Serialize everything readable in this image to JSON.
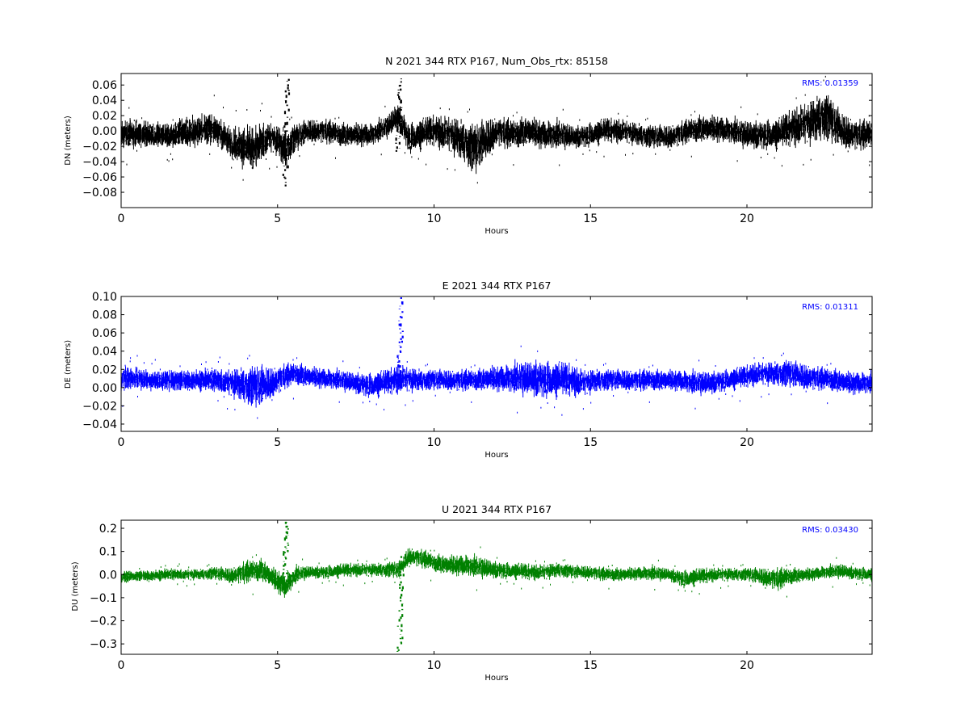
{
  "chart_data": [
    {
      "type": "scatter",
      "title": "N 2021 344 RTX  P167, Num_Obs_rtx: 85158",
      "xlabel": "Hours",
      "ylabel": "DN (meters)",
      "xlim": [
        0,
        24
      ],
      "ylim": [
        -0.1,
        0.075
      ],
      "xticks": [
        "0",
        "5",
        "10",
        "15",
        "20"
      ],
      "yticks": [
        "0.06",
        "0.04",
        "0.02",
        "0.00",
        "−0.02",
        "−0.04",
        "−0.06",
        "−0.08"
      ],
      "color": "#000000",
      "rms_text": "RMS:  0.01359",
      "rms_color": "#0000ff",
      "grid": false,
      "series": [
        {
          "x": [
            0,
            0.5,
            1,
            1.5,
            2,
            2.5,
            2.9,
            3.2,
            3.5,
            3.8,
            4.1,
            4.4,
            4.7,
            4.95,
            5.25,
            5.5,
            6,
            6.5,
            7,
            7.5,
            8,
            8.5,
            8.85,
            9.2,
            9.6,
            10,
            10.5,
            11,
            11.3,
            11.6,
            12,
            12.5,
            13,
            13.5,
            14,
            14.5,
            15,
            15.5,
            16,
            16.5,
            17,
            17.5,
            18,
            18.5,
            19,
            19.5,
            20,
            20.5,
            21,
            21.5,
            22,
            22.5,
            23,
            23.5,
            24
          ],
          "center": [
            -0.005,
            -0.003,
            -0.005,
            -0.008,
            -0.002,
            0.0,
            0.005,
            -0.005,
            -0.015,
            -0.02,
            -0.025,
            -0.02,
            -0.008,
            -0.012,
            -0.025,
            -0.012,
            0.0,
            0.0,
            -0.005,
            -0.005,
            -0.005,
            0.005,
            0.02,
            -0.01,
            -0.005,
            0.0,
            -0.005,
            -0.015,
            -0.025,
            -0.015,
            0.0,
            -0.005,
            0.0,
            -0.005,
            -0.005,
            -0.008,
            -0.005,
            0.0,
            0.0,
            -0.005,
            -0.008,
            -0.008,
            -0.002,
            0.003,
            0.003,
            0.0,
            -0.005,
            -0.005,
            -0.005,
            0.005,
            0.01,
            0.02,
            0.0,
            -0.005,
            -0.005
          ],
          "spread": [
            0.02,
            0.018,
            0.018,
            0.018,
            0.02,
            0.022,
            0.022,
            0.02,
            0.02,
            0.025,
            0.03,
            0.03,
            0.022,
            0.02,
            0.03,
            0.02,
            0.016,
            0.016,
            0.016,
            0.016,
            0.016,
            0.016,
            0.02,
            0.02,
            0.02,
            0.02,
            0.025,
            0.03,
            0.035,
            0.03,
            0.02,
            0.02,
            0.02,
            0.02,
            0.02,
            0.016,
            0.016,
            0.016,
            0.016,
            0.016,
            0.016,
            0.016,
            0.016,
            0.018,
            0.018,
            0.018,
            0.02,
            0.02,
            0.02,
            0.025,
            0.03,
            0.035,
            0.025,
            0.02,
            0.02
          ]
        }
      ],
      "annotations": [
        {
          "type": "spike",
          "x": 5.25,
          "y_from": -0.07,
          "y_to": 0.068
        },
        {
          "type": "spike",
          "x": 8.85,
          "y_from": -0.025,
          "y_to": 0.07
        }
      ]
    },
    {
      "type": "scatter",
      "title": "E 2021 344 RTX  P167",
      "xlabel": "Hours",
      "ylabel": "DE (meters)",
      "xlim": [
        0,
        24
      ],
      "ylim": [
        -0.048,
        0.1
      ],
      "xticks": [
        "0",
        "5",
        "10",
        "15",
        "20"
      ],
      "yticks": [
        "0.10",
        "0.08",
        "0.06",
        "0.04",
        "0.02",
        "0.00",
        "−0.02",
        "−0.04"
      ],
      "color": "#0000ff",
      "rms_text": "RMS:  0.01311",
      "rms_color": "#0000ff",
      "grid": false,
      "series": [
        {
          "x": [
            0,
            0.5,
            1,
            1.5,
            2,
            2.5,
            3,
            3.5,
            4,
            4.4,
            4.8,
            5.2,
            5.6,
            6,
            6.5,
            7,
            7.5,
            8,
            8.5,
            8.9,
            9.3,
            9.8,
            10.3,
            10.8,
            11.3,
            11.8,
            12.3,
            12.8,
            13.3,
            13.8,
            14.3,
            14.8,
            15.3,
            15.8,
            16.3,
            16.8,
            17.3,
            17.8,
            18.3,
            18.8,
            19.3,
            19.8,
            20.3,
            20.8,
            21.3,
            21.8,
            22.3,
            22.8,
            23.3,
            24
          ],
          "center": [
            0.01,
            0.01,
            0.008,
            0.008,
            0.008,
            0.008,
            0.008,
            0.005,
            0.002,
            0.0,
            0.005,
            0.012,
            0.015,
            0.012,
            0.01,
            0.008,
            0.005,
            0.002,
            0.005,
            0.01,
            0.008,
            0.008,
            0.008,
            0.008,
            0.008,
            0.01,
            0.01,
            0.01,
            0.01,
            0.008,
            0.008,
            0.005,
            0.008,
            0.008,
            0.008,
            0.008,
            0.008,
            0.008,
            0.005,
            0.005,
            0.008,
            0.01,
            0.015,
            0.015,
            0.015,
            0.012,
            0.01,
            0.008,
            0.005,
            0.005
          ],
          "spread": [
            0.015,
            0.013,
            0.012,
            0.012,
            0.012,
            0.012,
            0.013,
            0.016,
            0.022,
            0.025,
            0.018,
            0.014,
            0.013,
            0.012,
            0.012,
            0.012,
            0.013,
            0.014,
            0.014,
            0.016,
            0.014,
            0.012,
            0.012,
            0.012,
            0.012,
            0.014,
            0.016,
            0.02,
            0.022,
            0.02,
            0.018,
            0.015,
            0.013,
            0.012,
            0.012,
            0.012,
            0.012,
            0.012,
            0.014,
            0.014,
            0.012,
            0.012,
            0.013,
            0.014,
            0.016,
            0.015,
            0.013,
            0.013,
            0.013,
            0.013
          ]
        }
      ],
      "annotations": [
        {
          "type": "spike",
          "x": 8.88,
          "y_from": -0.005,
          "y_to": 0.1
        }
      ]
    },
    {
      "type": "scatter",
      "title": "U 2021 344 RTX  P167",
      "xlabel": "Hours",
      "ylabel": "DU (meters)",
      "xlim": [
        0,
        24
      ],
      "ylim": [
        -0.345,
        0.235
      ],
      "xticks": [
        "0",
        "5",
        "10",
        "15",
        "20"
      ],
      "yticks": [
        "0.2",
        "0.1",
        "0.0",
        "−0.1",
        "−0.2",
        "−0.3"
      ],
      "color": "#008000",
      "rms_text": "RMS:  0.03430",
      "rms_color": "#0000ff",
      "grid": false,
      "series": [
        {
          "x": [
            0,
            0.5,
            1,
            1.5,
            2,
            2.5,
            3,
            3.5,
            4,
            4.5,
            4.9,
            5.25,
            5.6,
            6,
            6.5,
            7,
            7.5,
            8,
            8.5,
            8.9,
            9.2,
            9.6,
            10,
            10.5,
            11,
            11.5,
            12,
            12.5,
            13,
            13.5,
            14,
            14.5,
            15,
            15.5,
            16,
            16.5,
            17,
            17.5,
            18,
            18.5,
            19,
            19.5,
            20,
            20.5,
            21,
            21.5,
            22,
            22.5,
            23,
            23.5,
            24
          ],
          "center": [
            -0.01,
            -0.005,
            -0.005,
            0.0,
            0.0,
            0.0,
            0.005,
            -0.005,
            0.01,
            0.02,
            -0.02,
            -0.05,
            0.0,
            0.01,
            0.01,
            0.015,
            0.02,
            0.02,
            0.02,
            0.02,
            0.08,
            0.07,
            0.05,
            0.04,
            0.04,
            0.03,
            0.02,
            0.015,
            0.01,
            0.01,
            0.02,
            0.01,
            0.01,
            0.0,
            0.0,
            0.005,
            0.005,
            0.0,
            -0.02,
            -0.01,
            0.0,
            0.0,
            0.0,
            -0.01,
            -0.02,
            -0.005,
            0.0,
            0.01,
            0.015,
            0.005,
            0.0
          ],
          "spread": [
            0.03,
            0.025,
            0.025,
            0.025,
            0.025,
            0.025,
            0.03,
            0.035,
            0.05,
            0.05,
            0.05,
            0.06,
            0.04,
            0.03,
            0.03,
            0.03,
            0.03,
            0.03,
            0.035,
            0.04,
            0.04,
            0.04,
            0.04,
            0.045,
            0.05,
            0.05,
            0.04,
            0.035,
            0.035,
            0.035,
            0.035,
            0.03,
            0.03,
            0.03,
            0.03,
            0.03,
            0.035,
            0.03,
            0.04,
            0.035,
            0.03,
            0.03,
            0.03,
            0.04,
            0.05,
            0.035,
            0.03,
            0.03,
            0.035,
            0.03,
            0.03
          ]
        }
      ],
      "annotations": [
        {
          "type": "spike",
          "x": 5.22,
          "y_from": -0.08,
          "y_to": 0.235
        },
        {
          "type": "spike",
          "x": 8.9,
          "y_from": -0.345,
          "y_to": 0.08
        }
      ]
    }
  ]
}
